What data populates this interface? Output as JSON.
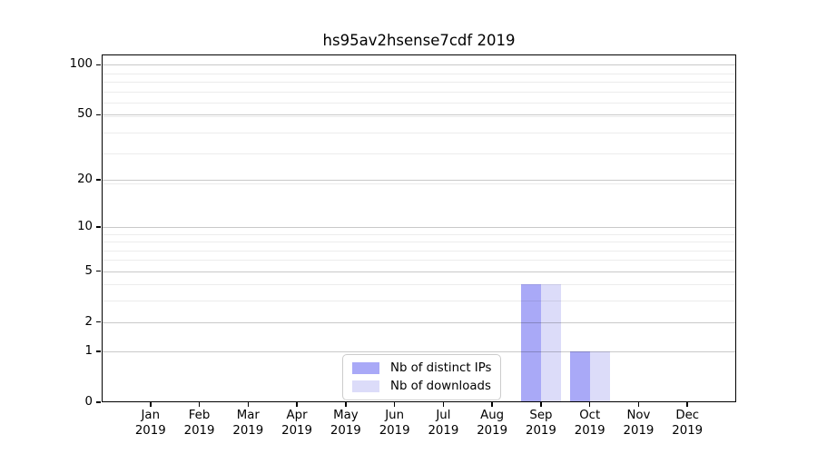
{
  "title": "hs95av2hsense7cdf 2019",
  "chart_data": {
    "type": "bar",
    "title": "hs95av2hsense7cdf 2019",
    "x_axis": {
      "categories": [
        "Jan",
        "Feb",
        "Mar",
        "Apr",
        "May",
        "Jun",
        "Jul",
        "Aug",
        "Sep",
        "Oct",
        "Nov",
        "Dec"
      ],
      "tick_second_line": "2019"
    },
    "y_axis": {
      "scale": "log1p",
      "major_ticks": [
        0,
        1,
        2,
        5,
        10,
        20,
        50,
        100
      ],
      "minor_ticks": [
        3,
        4,
        6,
        7,
        8,
        9,
        19,
        29,
        39,
        49,
        59,
        69,
        79,
        89
      ],
      "range": [
        0,
        115
      ]
    },
    "series": [
      {
        "name": "Nb of distinct IPs",
        "color": "#a9a9f7",
        "values": [
          0,
          0,
          0,
          0,
          0,
          0,
          0,
          0,
          4,
          1,
          0,
          0
        ]
      },
      {
        "name": "Nb of downloads",
        "color": "#dcdcf9",
        "values": [
          0,
          0,
          0,
          0,
          0,
          0,
          0,
          0,
          4,
          1,
          0,
          0
        ]
      }
    ],
    "legend": {
      "position": "lower center",
      "entries": [
        "Nb of distinct IPs",
        "Nb of downloads"
      ]
    },
    "grid": "horizontal-only"
  }
}
